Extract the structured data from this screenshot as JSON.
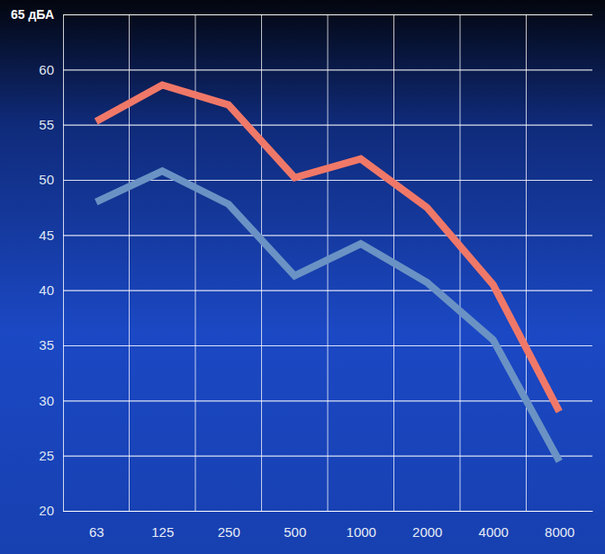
{
  "chart_data": {
    "type": "line",
    "categories": [
      "63",
      "125",
      "250",
      "500",
      "1000",
      "2000",
      "4000",
      "8000"
    ],
    "series": [
      {
        "color": "#f07868",
        "values": [
          55.3,
          58.6,
          56.8,
          50.2,
          51.9,
          47.5,
          40.5,
          29
        ]
      },
      {
        "color": "#6a92c4",
        "values": [
          48,
          50.8,
          47.8,
          41.3,
          44.2,
          40.7,
          35.5,
          24.5
        ]
      }
    ],
    "ylim": [
      20,
      65
    ],
    "yticks": [
      20,
      25,
      30,
      35,
      40,
      45,
      50,
      55,
      60,
      {
        "value": 65,
        "label": "65 дБА"
      }
    ],
    "grid": true
  }
}
